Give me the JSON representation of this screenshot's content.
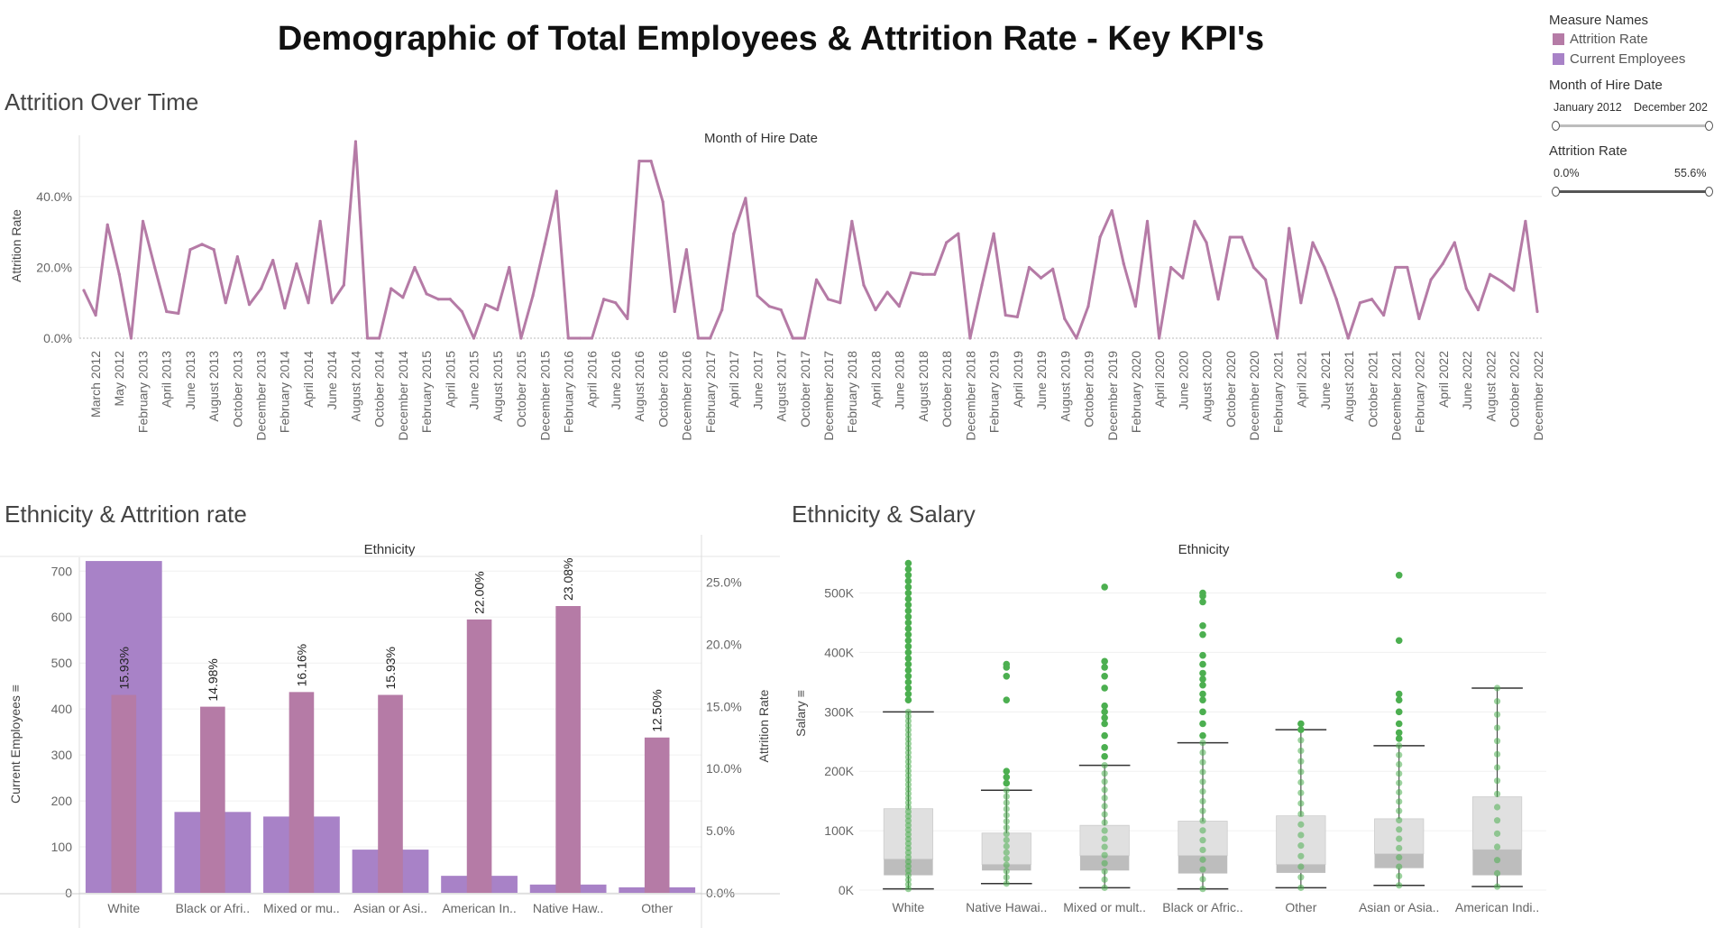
{
  "title": "Demographic of Total Employees & Attrition Rate - Key KPI's",
  "colors": {
    "attrition": "#B57BA6",
    "current": "#A882C7",
    "salary_points": "#4CAF50",
    "box_upper": "#E0E0E0",
    "box_lower": "#BDBDBD"
  },
  "sidebar": {
    "legend_title": "Measure Names",
    "legend_items": [
      {
        "label": "Attrition Rate",
        "color": "#B57BA6"
      },
      {
        "label": "Current Employees",
        "color": "#A882C7"
      }
    ],
    "filter_hire": {
      "title": "Month of Hire Date",
      "min_label": "January 2012",
      "max_label": "December 202"
    },
    "filter_attrition": {
      "title": "Attrition Rate",
      "min_label": "0.0%",
      "max_label": "55.6%"
    }
  },
  "chart_data": [
    {
      "id": "attrition-over-time",
      "type": "line",
      "section_title": "Attrition Over Time",
      "title": "Month of Hire Date",
      "ylabel": "Attrition Rate",
      "ylim": [
        0,
        56
      ],
      "yticks": [
        {
          "value": 0,
          "label": "0.0%"
        },
        {
          "value": 20,
          "label": "20.0%"
        },
        {
          "value": 40,
          "label": "40.0%"
        }
      ],
      "x_tick_labels": [
        "March 2012",
        "May 2012",
        "February 2013",
        "April 2013",
        "June 2013",
        "August 2013",
        "October 2013",
        "December 2013",
        "February 2014",
        "April 2014",
        "June 2014",
        "August 2014",
        "October 2014",
        "December 2014",
        "February 2015",
        "April 2015",
        "June 2015",
        "August 2015",
        "October 2015",
        "December 2015",
        "February 2016",
        "April 2016",
        "June 2016",
        "August 2016",
        "October 2016",
        "December 2016",
        "February 2017",
        "April 2017",
        "June 2017",
        "August 2017",
        "October 2017",
        "December 2017",
        "February 2018",
        "April 2018",
        "June 2018",
        "August 2018",
        "October 2018",
        "December 2018",
        "February 2019",
        "April 2019",
        "June 2019",
        "August 2019",
        "October 2019",
        "December 2019",
        "February 2020",
        "April 2020",
        "June 2020",
        "August 2020",
        "October 2020",
        "December 2020",
        "February 2021",
        "April 2021",
        "June 2021",
        "August 2021",
        "October 2021",
        "December 2021",
        "February 2022",
        "April 2022",
        "June 2022",
        "August 2022",
        "October 2022",
        "December 2022"
      ],
      "series": [
        {
          "values": [
            13.5,
            6.5,
            32,
            18,
            0,
            33,
            20,
            7.5,
            7,
            25,
            26.5,
            25,
            10,
            23,
            9.5,
            14,
            22,
            8.5,
            21,
            10,
            33,
            10,
            15,
            55.5,
            0,
            0,
            14,
            11.5,
            20,
            12.5,
            11,
            11,
            7.5,
            0,
            9.5,
            8,
            20,
            0,
            12,
            26.5,
            41.5,
            0,
            0,
            0,
            11,
            10,
            5.5,
            50,
            50,
            38.5,
            7.5,
            25,
            0,
            0,
            8,
            29.5,
            39.5,
            12,
            9,
            8,
            0,
            0,
            16.5,
            11,
            10,
            33,
            15,
            8,
            13,
            9,
            18.5,
            18,
            18,
            27,
            29.5,
            0,
            15,
            29.5,
            6.5,
            6,
            20,
            17,
            19.5,
            5.5,
            0,
            9,
            28.5,
            36,
            21,
            9,
            33,
            0,
            20,
            17,
            33,
            27,
            11,
            28.5,
            28.5,
            20,
            16.5,
            0,
            31,
            10,
            27,
            20,
            11,
            0,
            10,
            11,
            6.5,
            20,
            20,
            5.5,
            16.5,
            21,
            27,
            14,
            8,
            18,
            16,
            13.5,
            33,
            7.5
          ]
        }
      ]
    },
    {
      "id": "ethnicity-attrition",
      "type": "bar",
      "section_title": "Ethnicity & Attrition rate",
      "title": "Ethnicity",
      "ylabel_left": "Current Employees",
      "ylabel_right": "Attrition Rate",
      "ylim_left": [
        0,
        730
      ],
      "ylim_right": [
        0,
        27
      ],
      "yticks_left": [
        {
          "value": 0,
          "label": "0"
        },
        {
          "value": 100,
          "label": "100"
        },
        {
          "value": 200,
          "label": "200"
        },
        {
          "value": 300,
          "label": "300"
        },
        {
          "value": 400,
          "label": "400"
        },
        {
          "value": 500,
          "label": "500"
        },
        {
          "value": 600,
          "label": "600"
        },
        {
          "value": 700,
          "label": "700"
        }
      ],
      "yticks_right": [
        {
          "value": 0,
          "label": "0.0%"
        },
        {
          "value": 5,
          "label": "5.0%"
        },
        {
          "value": 10,
          "label": "10.0%"
        },
        {
          "value": 15,
          "label": "15.0%"
        },
        {
          "value": 20,
          "label": "20.0%"
        },
        {
          "value": 25,
          "label": "25.0%"
        }
      ],
      "categories": [
        "White",
        "Black or Afri..",
        "Mixed or mu..",
        "Asian or Asi..",
        "American In..",
        "Native Haw..",
        "Other"
      ],
      "series": [
        {
          "name": "Current Employees",
          "values": [
            722,
            176,
            166,
            94,
            37,
            18,
            12
          ]
        },
        {
          "name": "Attrition Rate",
          "values": [
            15.93,
            14.98,
            16.16,
            15.93,
            22.0,
            23.08,
            12.5
          ],
          "labels": [
            "15.93%",
            "14.98%",
            "16.16%",
            "15.93%",
            "22.00%",
            "23.08%",
            "12.50%"
          ]
        }
      ]
    },
    {
      "id": "ethnicity-salary",
      "type": "box",
      "section_title": "Ethnicity & Salary",
      "title": "Ethnicity",
      "ylabel": "Salary",
      "ylim": [
        0,
        560000
      ],
      "yticks": [
        {
          "value": 0,
          "label": "0K"
        },
        {
          "value": 100000,
          "label": "100K"
        },
        {
          "value": 200000,
          "label": "200K"
        },
        {
          "value": 300000,
          "label": "300K"
        },
        {
          "value": 400000,
          "label": "400K"
        },
        {
          "value": 500000,
          "label": "500K"
        }
      ],
      "categories": [
        "White",
        "Native Hawai..",
        "Mixed or mult..",
        "Black or Afric..",
        "Other",
        "Asian or Asia..",
        "American Indi.."
      ],
      "boxes": [
        {
          "min": 2000,
          "q1": 25000,
          "median": 52000,
          "q3": 137000,
          "max": 300000
        },
        {
          "min": 11000,
          "q1": 33000,
          "median": 43000,
          "q3": 96000,
          "max": 168000
        },
        {
          "min": 4000,
          "q1": 33000,
          "median": 58000,
          "q3": 109000,
          "max": 210000
        },
        {
          "min": 2000,
          "q1": 28000,
          "median": 58000,
          "q3": 116000,
          "max": 248000
        },
        {
          "min": 4000,
          "q1": 29000,
          "median": 43000,
          "q3": 125000,
          "max": 270000
        },
        {
          "min": 8000,
          "q1": 37000,
          "median": 61000,
          "q3": 120000,
          "max": 243000
        },
        {
          "min": 6000,
          "q1": 25000,
          "median": 68000,
          "q3": 157000,
          "max": 340000
        }
      ],
      "outliers": [
        [
          320000,
          340000,
          360000,
          380000,
          400000,
          420000,
          440000,
          460000,
          480000,
          500000,
          520000,
          540000,
          550000,
          530000,
          510000,
          490000,
          470000,
          450000,
          430000,
          410000,
          390000,
          370000,
          350000,
          330000
        ],
        [
          180000,
          190000,
          200000,
          320000,
          360000,
          375000,
          380000
        ],
        [
          225000,
          240000,
          260000,
          280000,
          290000,
          300000,
          310000,
          340000,
          360000,
          375000,
          385000,
          510000
        ],
        [
          260000,
          280000,
          300000,
          320000,
          330000,
          345000,
          355000,
          365000,
          380000,
          395000,
          430000,
          445000,
          485000,
          495000,
          500000
        ],
        [
          280000,
          270000
        ],
        [
          255000,
          265000,
          280000,
          300000,
          320000,
          330000,
          420000,
          530000
        ],
        []
      ]
    }
  ]
}
